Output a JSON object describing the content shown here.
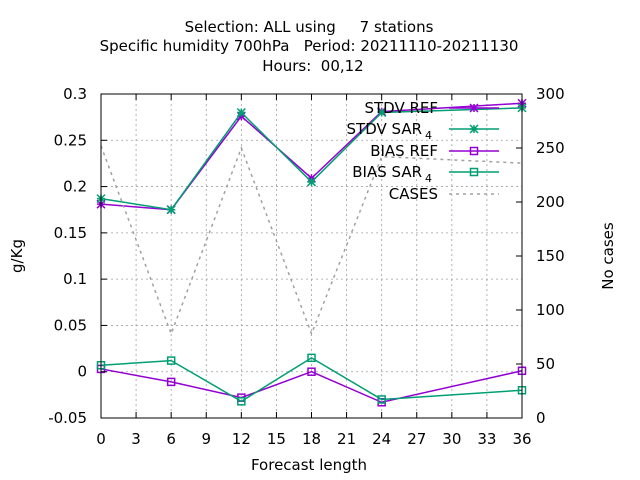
{
  "chart_data": {
    "type": "line",
    "title_lines": [
      "Selection: ALL using     7 stations",
      "Specific humidity 700hPa   Period: 20211110-20211130",
      "Hours:  00,12"
    ],
    "xlabel": "Forecast length",
    "ylabel": "g/Kg",
    "y2label": "No cases",
    "xlim": [
      0,
      36
    ],
    "ylim": [
      -0.05,
      0.3
    ],
    "y2lim": [
      0,
      300
    ],
    "xticks": [
      "0",
      "3",
      "6",
      "9",
      "12",
      "15",
      "18",
      "21",
      "24",
      "27",
      "30",
      "33",
      "36"
    ],
    "yticks": [
      "-0.05",
      "0",
      "0.05",
      "0.1",
      "0.15",
      "0.2",
      "0.25",
      "0.3"
    ],
    "y2ticks": [
      "0",
      "50",
      "100",
      "150",
      "200",
      "250",
      "300"
    ],
    "grid": true,
    "legend_position": "top-right",
    "series": [
      {
        "name": "STDV REF",
        "axis": "y",
        "marker": "star",
        "dash": "solid",
        "color": "#9400d3",
        "x": [
          0,
          6,
          12,
          18,
          24,
          36
        ],
        "values": [
          0.181,
          0.175,
          0.276,
          0.209,
          0.281,
          0.29
        ]
      },
      {
        "name": "STDV SAR",
        "name_sub": "4",
        "axis": "y",
        "marker": "star",
        "dash": "solid",
        "color": "#009e73",
        "x": [
          0,
          6,
          12,
          18,
          24,
          36
        ],
        "values": [
          0.187,
          0.175,
          0.28,
          0.205,
          0.28,
          0.285
        ]
      },
      {
        "name": "BIAS REF",
        "axis": "y",
        "marker": "square",
        "dash": "solid",
        "color": "#9400d3",
        "x": [
          0,
          6,
          12,
          18,
          24,
          36
        ],
        "values": [
          0.003,
          -0.011,
          -0.028,
          0.0,
          -0.033,
          0.001
        ]
      },
      {
        "name": "BIAS SAR",
        "name_sub": "4",
        "axis": "y",
        "marker": "square",
        "dash": "solid",
        "color": "#009e73",
        "x": [
          0,
          6,
          12,
          18,
          24,
          36
        ],
        "values": [
          0.007,
          0.012,
          -0.032,
          0.015,
          -0.03,
          -0.02
        ]
      },
      {
        "name": "CASES",
        "axis": "y2",
        "marker": "none",
        "dash": "dashed",
        "color": "#a0a0a0",
        "x": [
          0,
          6,
          12,
          18,
          24,
          36
        ],
        "values": [
          252,
          78,
          250,
          78,
          242,
          236
        ]
      }
    ]
  }
}
